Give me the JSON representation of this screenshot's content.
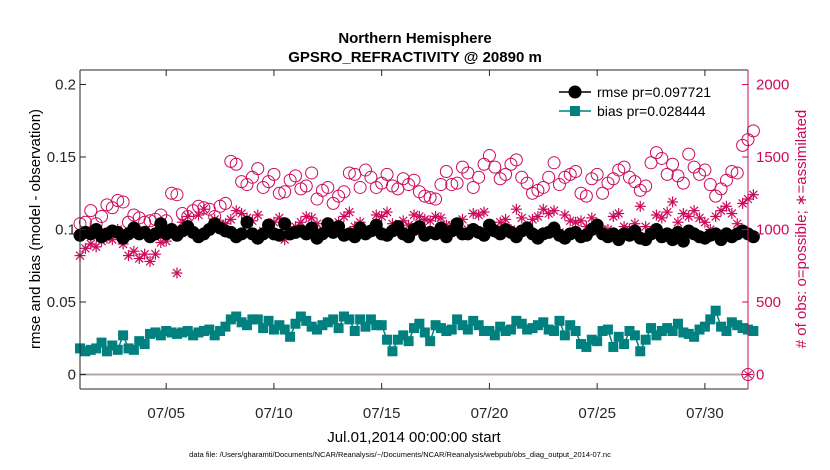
{
  "chart_data": {
    "type": "line",
    "title_line1": "Northern Hemisphere",
    "title_line2": "GPSRO_REFRACTIVITY @ 20890 m",
    "xlabel": "Jul.01,2014 00:00:00 start",
    "ylabel_left": "rmse and bias (model - observation)",
    "ylabel_right": "# of obs: o=possible; ∗=assimilated",
    "footnote": "data file: /Users/gharamti/Documents/NCAR/Reanalysis/~/Documents/NCAR/Reanalysis/webpub/obs_diag_output_2014-07.nc",
    "x_range_days": [
      1.0,
      32.0
    ],
    "x_ticks": [
      {
        "day": 5,
        "label": "07/05"
      },
      {
        "day": 10,
        "label": "07/10"
      },
      {
        "day": 15,
        "label": "07/15"
      },
      {
        "day": 20,
        "label": "07/20"
      },
      {
        "day": 25,
        "label": "07/25"
      },
      {
        "day": 30,
        "label": "07/30"
      }
    ],
    "ylim_left": [
      -0.01,
      0.21
    ],
    "y_ticks_left": [
      {
        "value": 0,
        "label": "0"
      },
      {
        "value": 0.05,
        "label": "0.05"
      },
      {
        "value": 0.1,
        "label": "0.1"
      },
      {
        "value": 0.15,
        "label": "0.15"
      },
      {
        "value": 0.2,
        "label": "0.2"
      }
    ],
    "ylim_right": [
      -100,
      2100
    ],
    "y_ticks_right": [
      {
        "value": 0,
        "label": "0"
      },
      {
        "value": 500,
        "label": "500"
      },
      {
        "value": 1000,
        "label": "1000"
      },
      {
        "value": 1500,
        "label": "1500"
      },
      {
        "value": 2000,
        "label": "2000"
      }
    ],
    "legend": [
      {
        "label": "rmse pr=0.097721",
        "color": "#000000"
      },
      {
        "label": "bias pr=0.028444",
        "color": "#00807f"
      }
    ],
    "colors": {
      "rmse": "#000000",
      "bias": "#00807f",
      "obs": "#cc0a5c",
      "zero_line": "#b3a3b3"
    },
    "start_day": 1.0,
    "step_day": 0.25,
    "series": [
      {
        "name": "rmse",
        "axis": "left",
        "values": [
          0.096,
          0.098,
          0.097,
          0.1,
          0.095,
          0.097,
          0.099,
          0.098,
          0.094,
          0.097,
          0.101,
          0.097,
          0.098,
          0.095,
          0.097,
          0.104,
          0.097,
          0.1,
          0.096,
          0.099,
          0.102,
          0.098,
          0.095,
          0.097,
          0.1,
          0.104,
          0.101,
          0.099,
          0.098,
          0.095,
          0.097,
          0.105,
          0.097,
          0.094,
          0.097,
          0.103,
          0.097,
          0.096,
          0.104,
          0.097,
          0.098,
          0.099,
          0.097,
          0.101,
          0.094,
          0.097,
          0.104,
          0.098,
          0.102,
          0.096,
          0.097,
          0.095,
          0.101,
          0.097,
          0.099,
          0.103,
          0.097,
          0.096,
          0.099,
          0.102,
          0.097,
          0.095,
          0.1,
          0.102,
          0.096,
          0.098,
          0.097,
          0.101,
          0.095,
          0.099,
          0.104,
          0.097,
          0.097,
          0.1,
          0.098,
          0.096,
          0.103,
          0.099,
          0.097,
          0.1,
          0.098,
          0.095,
          0.099,
          0.101,
          0.097,
          0.094,
          0.097,
          0.098,
          0.101,
          0.096,
          0.094,
          0.097,
          0.098,
          0.095,
          0.096,
          0.1,
          0.103,
          0.097,
          0.095,
          0.097,
          0.093,
          0.097,
          0.096,
          0.099,
          0.094,
          0.093,
          0.097,
          0.1,
          0.095,
          0.097,
          0.093,
          0.098,
          0.092,
          0.099,
          0.097,
          0.095,
          0.094,
          0.096,
          0.097,
          0.093,
          0.097,
          0.095,
          0.097,
          0.099,
          0.097,
          0.095
        ]
      },
      {
        "name": "bias",
        "axis": "left",
        "values": [
          0.018,
          0.016,
          0.017,
          0.018,
          0.022,
          0.016,
          0.02,
          0.017,
          0.027,
          0.018,
          0.017,
          0.023,
          0.021,
          0.028,
          0.029,
          0.027,
          0.03,
          0.029,
          0.028,
          0.029,
          0.03,
          0.027,
          0.029,
          0.03,
          0.031,
          0.027,
          0.03,
          0.033,
          0.038,
          0.04,
          0.036,
          0.034,
          0.038,
          0.038,
          0.032,
          0.037,
          0.031,
          0.034,
          0.031,
          0.026,
          0.035,
          0.04,
          0.037,
          0.033,
          0.031,
          0.034,
          0.036,
          0.038,
          0.032,
          0.04,
          0.038,
          0.03,
          0.038,
          0.033,
          0.038,
          0.034,
          0.034,
          0.024,
          0.016,
          0.024,
          0.027,
          0.023,
          0.032,
          0.035,
          0.029,
          0.023,
          0.034,
          0.032,
          0.03,
          0.031,
          0.038,
          0.034,
          0.031,
          0.037,
          0.034,
          0.03,
          0.03,
          0.027,
          0.033,
          0.03,
          0.031,
          0.037,
          0.035,
          0.031,
          0.032,
          0.034,
          0.036,
          0.031,
          0.03,
          0.037,
          0.027,
          0.034,
          0.03,
          0.021,
          0.019,
          0.024,
          0.023,
          0.03,
          0.031,
          0.019,
          0.026,
          0.021,
          0.03,
          0.027,
          0.016,
          0.024,
          0.032,
          0.027,
          0.03,
          0.032,
          0.03,
          0.035,
          0.029,
          0.028,
          0.026,
          0.031,
          0.033,
          0.038,
          0.044,
          0.033,
          0.03,
          0.036,
          0.034,
          0.032,
          0.031,
          0.03
        ]
      },
      {
        "name": "obs_possible",
        "axis": "right",
        "values": [
          1040,
          1050,
          1130,
          1040,
          1090,
          1170,
          1150,
          1200,
          1190,
          1050,
          1100,
          1080,
          1050,
          1060,
          1070,
          1100,
          1060,
          1250,
          1240,
          1110,
          1090,
          1130,
          1160,
          1150,
          1140,
          1090,
          1160,
          1180,
          1470,
          1450,
          1330,
          1310,
          1360,
          1420,
          1290,
          1330,
          1380,
          1250,
          1260,
          1340,
          1370,
          1280,
          1300,
          1390,
          1210,
          1270,
          1290,
          1180,
          1230,
          1260,
          1390,
          1380,
          1290,
          1410,
          1360,
          1290,
          1320,
          1380,
          1300,
          1280,
          1350,
          1310,
          1340,
          1260,
          1230,
          1220,
          1210,
          1310,
          1400,
          1310,
          1320,
          1430,
          1390,
          1290,
          1360,
          1450,
          1510,
          1430,
          1350,
          1380,
          1450,
          1480,
          1360,
          1320,
          1250,
          1270,
          1290,
          1360,
          1460,
          1310,
          1360,
          1380,
          1400,
          1250,
          1230,
          1350,
          1380,
          1250,
          1320,
          1350,
          1410,
          1430,
          1360,
          1330,
          1270,
          1300,
          1460,
          1530,
          1490,
          1380,
          1450,
          1370,
          1320,
          1520,
          1430,
          1380,
          1410,
          1310,
          1230,
          1280,
          1340,
          1400,
          1390,
          1580,
          1620,
          1680
        ]
      },
      {
        "name": "obs_assimilated",
        "axis": "right",
        "values": [
          820,
          870,
          900,
          880,
          920,
          940,
          930,
          1000,
          900,
          820,
          850,
          800,
          830,
          780,
          830,
          910,
          920,
          1000,
          700,
          1050,
          1090,
          980,
          1100,
          1140,
          1000,
          1070,
          1040,
          1040,
          1070,
          1130,
          1110,
          1080,
          1060,
          1100,
          990,
          1040,
          1050,
          1080,
          930,
          1000,
          1020,
          1050,
          1090,
          1080,
          1040,
          1000,
          1020,
          990,
          1050,
          1090,
          1120,
          1020,
          1050,
          980,
          1000,
          1100,
          1090,
          1120,
          1040,
          1000,
          1060,
          1030,
          1100,
          1090,
          1070,
          1060,
          1090,
          1080,
          1030,
          1030,
          1000,
          1070,
          1000,
          1110,
          1100,
          1120,
          1020,
          980,
          1050,
          1070,
          1000,
          1140,
          1080,
          1020,
          1070,
          1090,
          1140,
          1110,
          1130,
          980,
          1100,
          1060,
          1050,
          1060,
          1020,
          1080,
          1010,
          1000,
          1000,
          1090,
          1110,
          1020,
          1000,
          1040,
          1160,
          1020,
          980,
          1100,
          1080,
          1120,
          1190,
          1050,
          1110,
          1090,
          1130,
          1080,
          1050,
          1000,
          1090,
          1130,
          1160,
          1110,
          1040,
          1180,
          1210,
          1240
        ]
      }
    ],
    "corner_marker": {
      "day": 32.0,
      "left_value": 0,
      "right_value": 0
    }
  }
}
